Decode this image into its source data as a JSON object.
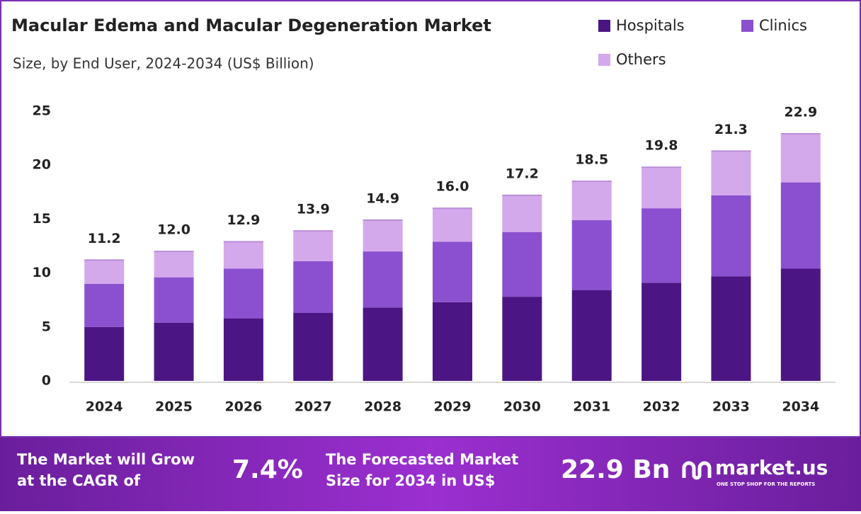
{
  "chart_data": {
    "type": "stacked_bar",
    "title": "Macular Edema and Macular Degeneration Market",
    "subtitle": "Size, by End User, 2024-2034 (US$ Billion)",
    "categories": [
      "2024",
      "2025",
      "2026",
      "2027",
      "2028",
      "2029",
      "2030",
      "2031",
      "2032",
      "2033",
      "2034"
    ],
    "series": [
      {
        "name": "Hospitals",
        "color": "#4b1683",
        "values": [
          5.0,
          5.4,
          5.8,
          6.3,
          6.8,
          7.3,
          7.8,
          8.4,
          9.1,
          9.7,
          10.4
        ]
      },
      {
        "name": "Clinics",
        "color": "#8b50cf",
        "values": [
          4.0,
          4.2,
          4.6,
          4.8,
          5.2,
          5.6,
          6.0,
          6.5,
          6.9,
          7.5,
          8.0
        ]
      },
      {
        "name": "Others",
        "color": "#d4a9ec",
        "values": [
          2.2,
          2.4,
          2.5,
          2.8,
          2.9,
          3.1,
          3.4,
          3.6,
          3.8,
          4.1,
          4.5
        ]
      }
    ],
    "totals": [
      11.2,
      12.0,
      12.9,
      13.9,
      14.9,
      16.0,
      17.2,
      18.5,
      19.8,
      21.3,
      22.9
    ],
    "total_labels": [
      "11.2",
      "12.0",
      "12.9",
      "13.9",
      "14.9",
      "16.0",
      "17.2",
      "18.5",
      "19.8",
      "21.3",
      "22.9"
    ],
    "ylim": [
      0,
      25
    ],
    "yticks": [
      0,
      5,
      10,
      15,
      20,
      25
    ],
    "grid": false
  },
  "footer": {
    "cagr_text": [
      "The Market will Grow",
      "at the CAGR of"
    ],
    "cagr_value": "7.4%",
    "forecast_text": [
      "The Forecasted Market",
      "Size for 2034 in US$"
    ],
    "forecast_value": "22.9 Bn",
    "brand": "market.us",
    "tagline": "ONE STOP SHOP FOR THE REPORTS"
  }
}
